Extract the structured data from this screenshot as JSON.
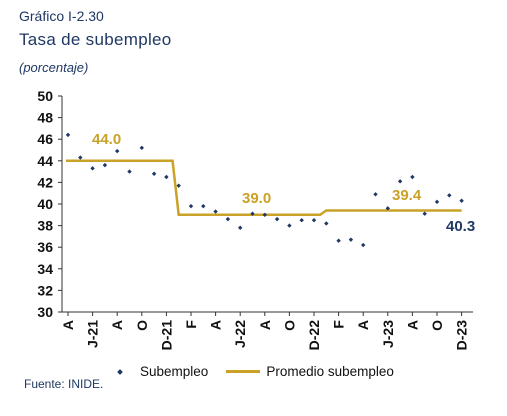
{
  "figure_label": "Gráfico I-2.30",
  "source": "Fuente: INIDE.",
  "colors": {
    "markers": "#1f3864",
    "average_line": "#c9a227",
    "annotation_gold": "#c9a227",
    "annotation_navy": "#1f3864"
  },
  "chart_data": {
    "type": "scatter+line",
    "title": "Tasa de subempleo",
    "subtitle": "(porcentaje)",
    "ylim": [
      30,
      50
    ],
    "yticks": [
      "50",
      "48",
      "46",
      "44",
      "42",
      "40",
      "38",
      "36",
      "34",
      "32",
      "30"
    ],
    "xtick_labels": [
      "A",
      "J-21",
      "A",
      "O",
      "D-21",
      "F",
      "A",
      "J-22",
      "A",
      "O",
      "D-22",
      "F",
      "A",
      "J-23",
      "A",
      "O",
      "D-23"
    ],
    "legend": [
      "Subempleo",
      "Promedio subempleo"
    ],
    "legend_position": "bottom",
    "grid": false,
    "series": [
      {
        "name": "Subempleo",
        "type": "scatter",
        "values": [
          46.4,
          44.3,
          43.3,
          43.6,
          44.9,
          43.0,
          45.2,
          42.8,
          42.5,
          41.7,
          39.8,
          39.8,
          39.3,
          38.6,
          37.8,
          39.1,
          39.0,
          38.6,
          38.0,
          38.5,
          38.5,
          38.2,
          36.6,
          36.7,
          36.2,
          40.9,
          39.6,
          42.1,
          42.5,
          39.1,
          40.2,
          40.8,
          40.3
        ]
      },
      {
        "name": "Promedio subempleo",
        "type": "line",
        "segments": [
          {
            "from_index": 0,
            "to_index": 8.5,
            "value": 44.0
          },
          {
            "from_index": 9,
            "to_index": 20.5,
            "value": 39.0
          },
          {
            "from_index": 21,
            "to_index": 32,
            "value": 39.4
          }
        ]
      }
    ],
    "annotations": [
      "44.0",
      "39.0",
      "39.4",
      "40.3"
    ]
  }
}
